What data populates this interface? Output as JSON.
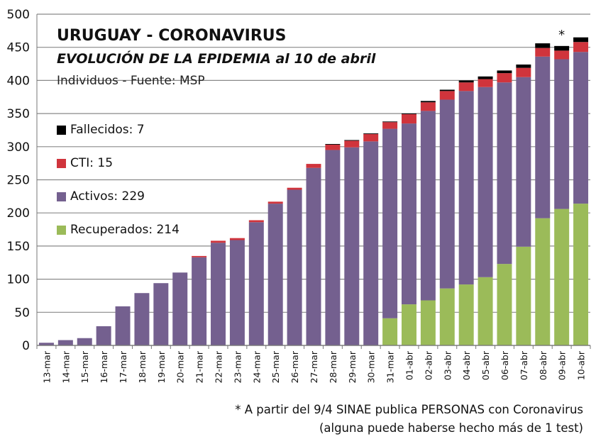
{
  "chart_data": {
    "type": "bar",
    "stacked": true,
    "title": "URUGUAY - CORONAVIRUS",
    "subtitle": "EVOLUCIÓN DE LA EPIDEMIA al 10 de abril",
    "subtitle2": "Individuos - Fuente: MSP",
    "ylim": [
      0,
      500
    ],
    "yticks": [
      0,
      50,
      100,
      150,
      200,
      250,
      300,
      350,
      400,
      450,
      500
    ],
    "grid": true,
    "categories": [
      "13-mar",
      "14-mar",
      "15-mar",
      "16-mar",
      "17-mar",
      "18-mar",
      "19-mar",
      "20-mar",
      "21-mar",
      "22-mar",
      "23-mar",
      "24-mar",
      "25-mar",
      "26-mar",
      "27-mar",
      "28-mar",
      "29-mar",
      "30-mar",
      "31-mar",
      "01-abr",
      "02-abr",
      "03-abr",
      "04-abr",
      "05-abr",
      "06-abr",
      "07-abr",
      "08-abr",
      "09-abr",
      "10-abr"
    ],
    "series": [
      {
        "name": "Recuperados",
        "color": "#9bbb59",
        "values": [
          0,
          0,
          0,
          0,
          0,
          0,
          0,
          0,
          0,
          0,
          0,
          0,
          0,
          0,
          0,
          0,
          0,
          0,
          41,
          62,
          68,
          86,
          92,
          103,
          123,
          149,
          192,
          206,
          214
        ]
      },
      {
        "name": "Activos",
        "color": "#74608f",
        "values": [
          4,
          8,
          11,
          29,
          59,
          79,
          94,
          110,
          133,
          155,
          159,
          186,
          214,
          235,
          268,
          295,
          299,
          308,
          286,
          273,
          286,
          285,
          292,
          287,
          274,
          256,
          244,
          226,
          229
        ]
      },
      {
        "name": "CTI",
        "color": "#d0343c",
        "values": [
          0,
          0,
          0,
          0,
          0,
          0,
          0,
          0,
          2,
          3,
          3,
          3,
          3,
          3,
          6,
          8,
          10,
          11,
          10,
          14,
          13,
          13,
          13,
          12,
          14,
          14,
          13,
          13,
          15
        ]
      },
      {
        "name": "Fallecidos",
        "color": "#000000",
        "values": [
          0,
          0,
          0,
          0,
          0,
          0,
          0,
          0,
          0,
          0,
          0,
          0,
          0,
          0,
          0,
          1,
          1,
          1,
          1,
          1,
          2,
          2,
          3,
          4,
          4,
          5,
          7,
          7,
          7
        ]
      }
    ],
    "legend": [
      {
        "label": "Fallecidos:  7",
        "color": "#000000"
      },
      {
        "label": "CTI:  15",
        "color": "#d0343c"
      },
      {
        "label": "Activos:  229",
        "color": "#74608f"
      },
      {
        "label": "Recuperados:  214",
        "color": "#9bbb59"
      }
    ],
    "legend_placement": "left",
    "annotation": {
      "text": "*",
      "category": "09-abr"
    },
    "footnote": [
      "* A partir del 9/4 SINAE publica PERSONAS con Coronavirus",
      "(alguna puede haberse hecho más de 1 test)"
    ]
  }
}
